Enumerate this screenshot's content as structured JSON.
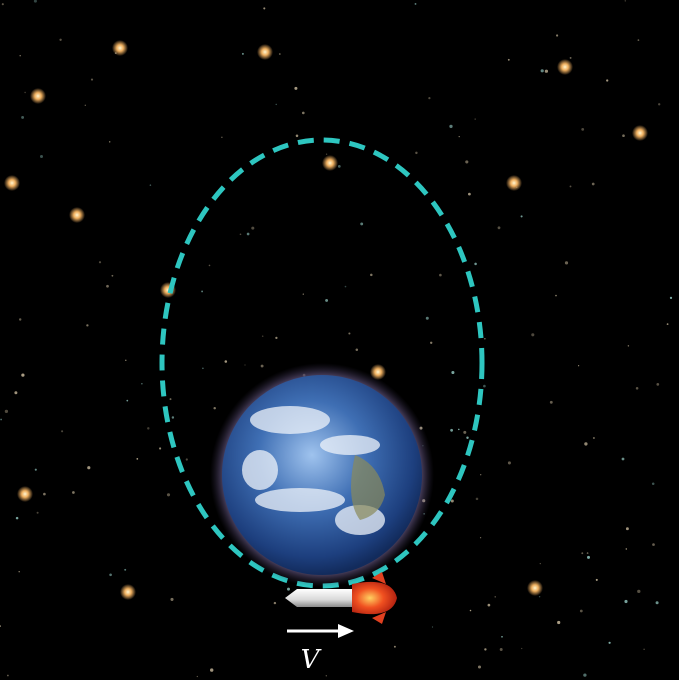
{
  "labels": {
    "velocity": "V"
  }
}
